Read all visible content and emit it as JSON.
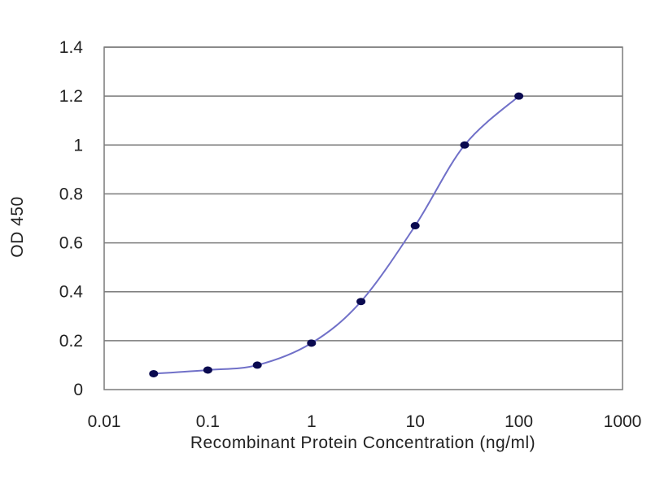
{
  "chart_data": {
    "type": "line",
    "title": "",
    "xlabel": "Recombinant Protein Concentration (ng/ml)",
    "ylabel": "OD 450",
    "xscale": "log",
    "xlim": [
      0.01,
      1000
    ],
    "ylim": [
      0,
      1.4
    ],
    "xticks": [
      "0.01",
      "0.1",
      "1",
      "10",
      "100",
      "1000"
    ],
    "yticks": [
      "0",
      "0.2",
      "0.4",
      "0.6",
      "0.8",
      "1",
      "1.2",
      "1.4"
    ],
    "grid": "horizontal",
    "legend": "none",
    "series": [
      {
        "x": [
          0.03,
          0.1,
          0.3,
          1,
          3,
          10,
          30,
          100
        ],
        "y": [
          0.065,
          0.08,
          0.1,
          0.19,
          0.36,
          0.67,
          1.0,
          1.2
        ]
      }
    ],
    "colors": {
      "line": "#7070c8",
      "marker": "#0a0a50",
      "grid": "#7a7a7a",
      "axis": "#7a7a7a"
    }
  }
}
